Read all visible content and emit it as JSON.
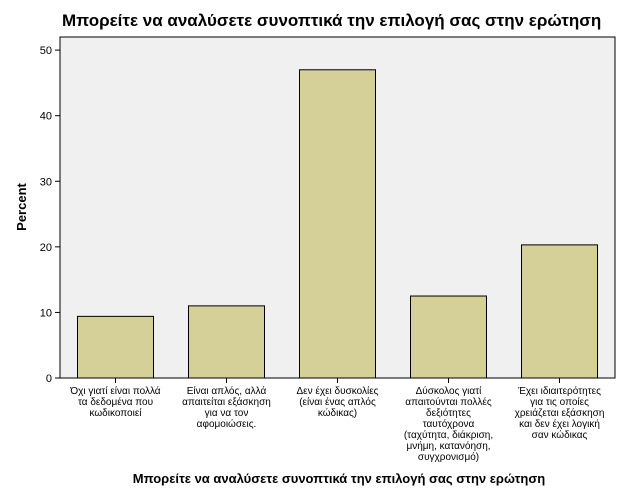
{
  "chart_data": {
    "type": "bar",
    "title": "Μπορείτε να αναλύσετε συνοπτικά την επιλογή σας στην ερώτηση",
    "xlabel": "Μπορείτε να αναλύσετε συνοπτικά την επιλογή σας στην ερώτηση",
    "ylabel": "Percent",
    "ylim": [
      0,
      52
    ],
    "yticks": [
      0,
      10,
      20,
      30,
      40,
      50
    ],
    "grid": false,
    "categories": [
      [
        "Όχι γιατί είναι πολλά",
        "τα δεδομένα που",
        "κωδικοποιεί"
      ],
      [
        "Είναι απλός, αλλά",
        "απαιτείται εξάσκηση",
        "για να τον",
        "αφομοιώσεις."
      ],
      [
        "Δεν έχει δυσκολίες",
        "(είναι ένας απλός",
        "κώδικας)"
      ],
      [
        "Δύσκολος γιατί",
        "απαιτούνται πολλές",
        "δεξιότητες",
        "ταυτόχρονα",
        "(ταχύτητα, διάκριση,",
        "μνήμη, κατανόηση,",
        "συγχρονισμό)"
      ],
      [
        "Έχει ιδιαιτερότητες",
        "για τις οποίες",
        "χρειάζεται εξάσκηση",
        "και δεν έχει λογική",
        "σαν κώδικας"
      ]
    ],
    "values": [
      9.4,
      11.0,
      47.0,
      12.5,
      20.3
    ],
    "colors": {
      "bar_fill": "#d5cf98",
      "bar_stroke": "#000000",
      "plot_background": "#f0f0f0"
    }
  }
}
